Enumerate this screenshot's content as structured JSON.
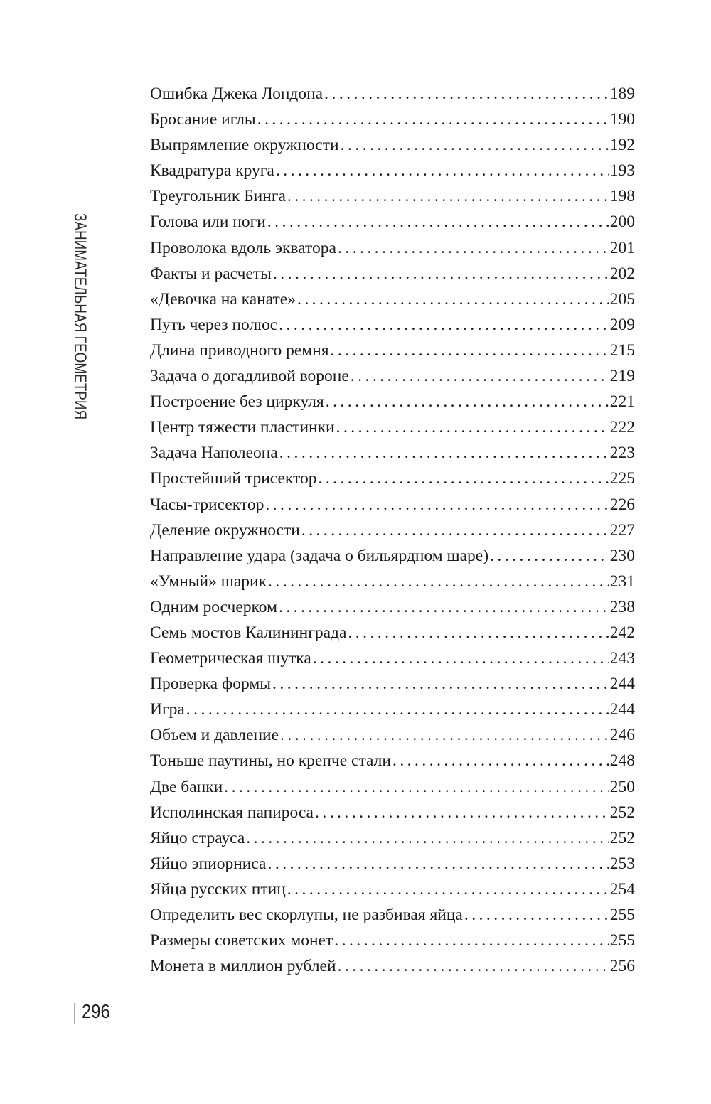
{
  "running_head": "ЗАНИМАТЕЛЬНАЯ ГЕОМЕТРИЯ",
  "page_number": "296",
  "toc": [
    {
      "title": "Ошибка Джека Лондона",
      "page": "189"
    },
    {
      "title": "Бросание иглы",
      "page": "190"
    },
    {
      "title": "Выпрямление окружности",
      "page": "192"
    },
    {
      "title": "Квадратура круга",
      "page": "193"
    },
    {
      "title": "Треугольник Бинга",
      "page": "198"
    },
    {
      "title": "Голова или ноги",
      "page": "200"
    },
    {
      "title": "Проволока вдоль экватора",
      "page": "201"
    },
    {
      "title": "Факты и расчеты",
      "page": "202"
    },
    {
      "title": "«Девочка на канате»",
      "page": "205"
    },
    {
      "title": "Путь через полюс",
      "page": "209"
    },
    {
      "title": "Длина приводного ремня",
      "page": "215"
    },
    {
      "title": "Задача о догадливой вороне",
      "page": "219"
    },
    {
      "title": "Построение без циркуля",
      "page": "221"
    },
    {
      "title": "Центр тяжести пластинки",
      "page": "222"
    },
    {
      "title": "Задача Наполеона",
      "page": "223"
    },
    {
      "title": "Простейший трисектор",
      "page": "225"
    },
    {
      "title": "Часы-трисектор",
      "page": "226"
    },
    {
      "title": "Деление окружности",
      "page": "227"
    },
    {
      "title": "Направление удара (задача о бильярдном шаре)",
      "page": "230"
    },
    {
      "title": "«Умный» шарик",
      "page": "231"
    },
    {
      "title": "Одним росчерком",
      "page": "238"
    },
    {
      "title": "Семь мостов Калининграда",
      "page": "242"
    },
    {
      "title": "Геометрическая шутка",
      "page": "243"
    },
    {
      "title": "Проверка формы",
      "page": "244"
    },
    {
      "title": "Игра",
      "page": "244"
    },
    {
      "title": "Объем и давление",
      "page": "246"
    },
    {
      "title": "Тоньше паутины, но крепче стали",
      "page": "248"
    },
    {
      "title": "Две банки",
      "page": "250"
    },
    {
      "title": "Исполинская папироса",
      "page": "252"
    },
    {
      "title": "Яйцо страуса",
      "page": "252"
    },
    {
      "title": "Яйцо эпиорниса",
      "page": "253"
    },
    {
      "title": "Яйца русских птиц",
      "page": "254"
    },
    {
      "title": "Определить вес скорлупы, не разбивая яйца",
      "page": "255"
    },
    {
      "title": "Размеры советских монет",
      "page": "255"
    },
    {
      "title": "Монета в миллион рублей",
      "page": "256"
    }
  ]
}
